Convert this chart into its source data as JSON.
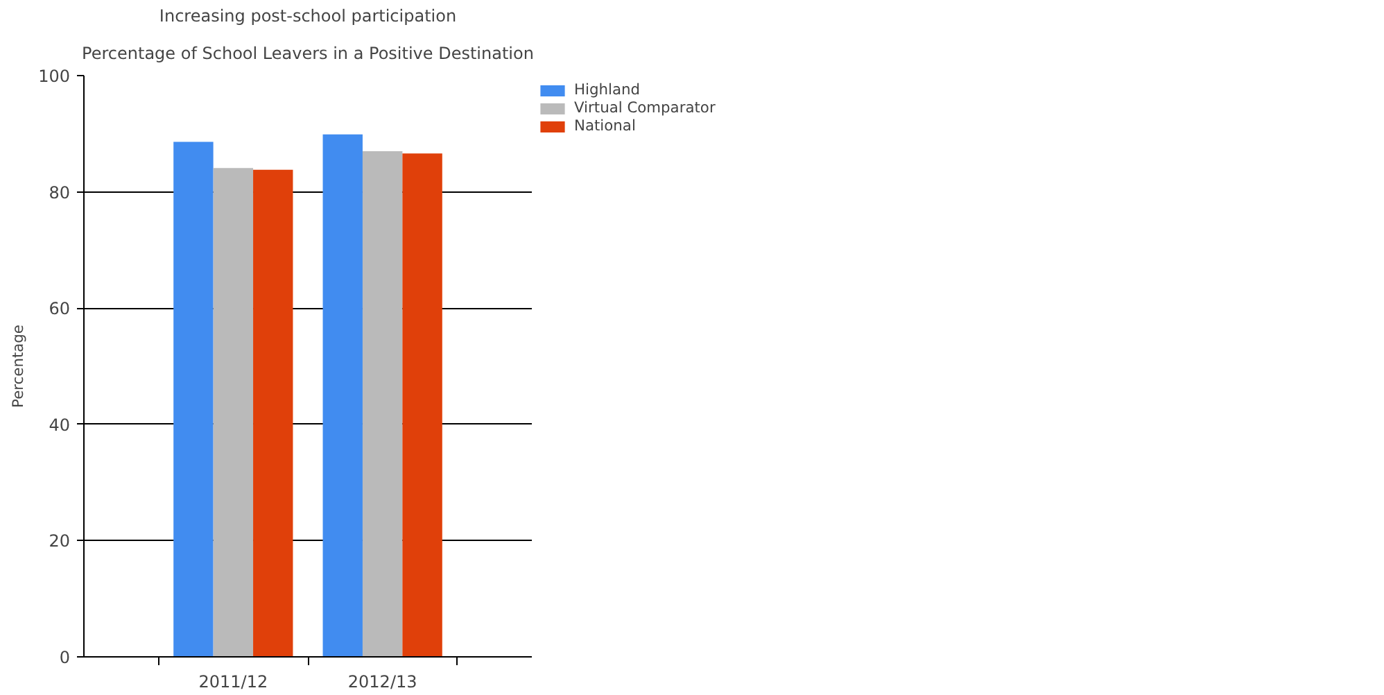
{
  "chart_data": {
    "type": "bar",
    "title": "Increasing post-school participation",
    "subtitle": "Percentage of School Leavers in a Positive Destination",
    "ylabel": "Percentage",
    "categories": [
      "2011/12",
      "2012/13"
    ],
    "series": [
      {
        "name": "Highland",
        "color": "#418cf0",
        "values": [
          88.6,
          89.9
        ]
      },
      {
        "name": "Virtual Comparator",
        "color": "#bababa",
        "values": [
          84.1,
          87.0
        ]
      },
      {
        "name": "National",
        "color": "#e0400a",
        "values": [
          83.8,
          86.6
        ]
      }
    ],
    "ylim": [
      0,
      100
    ],
    "yticks": [
      0,
      20,
      40,
      60,
      80,
      100
    ],
    "grid": "y",
    "legend": "top right"
  }
}
